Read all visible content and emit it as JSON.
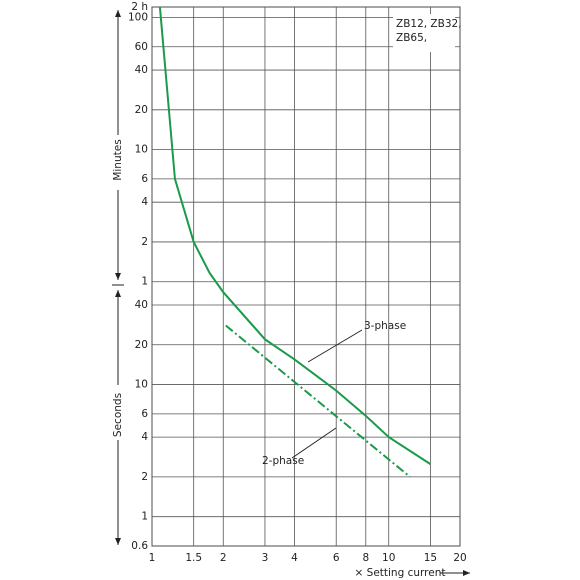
{
  "chart_data": {
    "type": "line",
    "x_label": "× Setting current",
    "y_labels": [
      "Minutes",
      "Seconds"
    ],
    "note_lines": [
      "ZB12, ZB32,",
      "ZB65,"
    ],
    "xscale": "log",
    "yscale": "log",
    "grid": true,
    "xlim": [
      1,
      20
    ],
    "xticks": [
      1,
      1.5,
      2,
      3,
      4,
      6,
      8,
      10,
      15,
      20
    ],
    "ylim": [
      0.6,
      7200
    ],
    "yticks": [
      {
        "value": 7200,
        "label": "2 h"
      },
      {
        "value": 6000,
        "label": "100"
      },
      {
        "value": 3600,
        "label": "60"
      },
      {
        "value": 2400,
        "label": "40"
      },
      {
        "value": 1200,
        "label": "20"
      },
      {
        "value": 600,
        "label": "10"
      },
      {
        "value": 360,
        "label": "6"
      },
      {
        "value": 240,
        "label": "4"
      },
      {
        "value": 120,
        "label": "2"
      },
      {
        "value": 60,
        "label": "1"
      },
      40,
      20,
      10,
      6,
      4,
      2,
      1,
      0.6
    ],
    "series": [
      {
        "name": "3-phase",
        "color": "#1a9a4a",
        "dash": false,
        "x": [
          1.08,
          1.25,
          1.5,
          1.75,
          2,
          3,
          4,
          6,
          8,
          10,
          15
        ],
        "values": [
          7200,
          360,
          120,
          70,
          50,
          22,
          15.5,
          9,
          5.8,
          4,
          2.5
        ]
      },
      {
        "name": "2-phase",
        "color": "#1a9a4a",
        "dash": true,
        "x": [
          2.05,
          12.3
        ],
        "values": [
          28,
          2
        ]
      }
    ]
  }
}
